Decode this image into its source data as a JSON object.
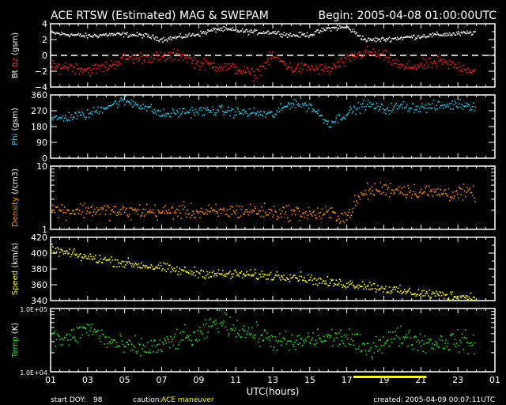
{
  "chart_data": {
    "type": "scatter",
    "title": "ACE RTSW (Estimated) MAG & SWEPAM",
    "begin": "Begin: 2005-04-08 01:00:00UTC",
    "xlabel": "UTC(hours)",
    "xlim": [
      1,
      25
    ],
    "x_ticks": [
      "01",
      "03",
      "05",
      "07",
      "09",
      "11",
      "13",
      "15",
      "17",
      "19",
      "21",
      "23",
      "01"
    ],
    "anchor_hours": [
      1,
      2,
      3,
      4,
      5,
      6,
      7,
      8,
      9,
      10,
      11,
      12,
      13,
      14,
      15,
      16,
      17,
      18,
      19,
      20,
      21,
      22,
      23,
      24
    ],
    "caution_interval_hours": [
      17.35,
      21.3
    ],
    "panels": [
      {
        "id": "mag",
        "ylabel_parts": [
          {
            "text": "Bt ",
            "color": "#ffffff"
          },
          {
            "text": "Bz",
            "color": "#ff2020"
          },
          {
            "text": " (gsm)",
            "color": "#ffffff"
          }
        ],
        "ylim": [
          -4,
          4
        ],
        "scale": "linear",
        "y_ticks": [
          {
            "v": 4,
            "l": "4"
          },
          {
            "v": 2,
            "l": "2"
          },
          {
            "v": 0,
            "l": "0"
          },
          {
            "v": -2,
            "l": "−2"
          },
          {
            "v": -4,
            "l": "−4"
          }
        ],
        "zero_line": true,
        "series": [
          {
            "name": "Bt",
            "color": "#ffffff",
            "noise": 0.15,
            "values": [
              2.9,
              2.7,
              2.5,
              2.7,
              2.7,
              2.6,
              2.1,
              2.4,
              2.8,
              3.4,
              3.2,
              3.0,
              3.0,
              2.6,
              2.7,
              3.5,
              3.6,
              2.0,
              2.1,
              2.3,
              2.5,
              2.7,
              2.8,
              3.0
            ]
          },
          {
            "name": "Bz",
            "color": "#ff2020",
            "noise": 0.35,
            "values": [
              -1.5,
              -1.3,
              -1.8,
              -1.4,
              -0.3,
              -0.2,
              -0.2,
              0.2,
              -1.0,
              -1.3,
              -1.6,
              -2.4,
              0.0,
              -1.6,
              -1.5,
              -1.8,
              -0.5,
              0.5,
              0.0,
              -1.5,
              -1.2,
              -0.8,
              -1.3,
              -2.0
            ]
          }
        ]
      },
      {
        "id": "phi",
        "ylabel_parts": [
          {
            "text": "Phi",
            "color": "#20c8f0"
          },
          {
            "text": " (gsm)",
            "color": "#ffffff"
          }
        ],
        "ylim": [
          0,
          360
        ],
        "scale": "linear",
        "y_ticks": [
          {
            "v": 360,
            "l": "360"
          },
          {
            "v": 270,
            "l": "270"
          },
          {
            "v": 180,
            "l": "180"
          },
          {
            "v": 90,
            "l": "90"
          },
          {
            "v": 0,
            "l": "0"
          }
        ],
        "series": [
          {
            "name": "Phi",
            "color": "#20c8f0",
            "noise": 14,
            "values": [
              220,
              240,
              250,
              300,
              330,
              300,
              250,
              265,
              270,
              275,
              265,
              260,
              250,
              320,
              300,
              200,
              260,
              310,
              280,
              300,
              290,
              300,
              310,
              300
            ]
          }
        ]
      },
      {
        "id": "density",
        "ylabel_parts": [
          {
            "text": "Density",
            "color": "#ff8c00"
          },
          {
            "text": " (/cm3)",
            "color": "#ffffff"
          }
        ],
        "ylim": [
          1,
          10
        ],
        "scale": "log",
        "y_ticks": [
          {
            "v": 10,
            "l": "10"
          },
          {
            "v": 1,
            "l": "1"
          }
        ],
        "series": [
          {
            "name": "Density",
            "color": "#ff8c00",
            "noise": 0.06,
            "values": [
              2.1,
              2.0,
              2.1,
              2.0,
              1.9,
              2.0,
              1.9,
              2.0,
              1.9,
              1.9,
              2.0,
              2.0,
              1.9,
              1.9,
              1.8,
              1.8,
              1.6,
              4.0,
              4.5,
              4.3,
              4.0,
              3.9,
              3.8,
              3.8
            ]
          }
        ]
      },
      {
        "id": "speed",
        "ylabel_parts": [
          {
            "text": "Speed",
            "color": "#ffff00"
          },
          {
            "text": " (km/s)",
            "color": "#ffffff"
          }
        ],
        "ylim": [
          340,
          420
        ],
        "scale": "linear",
        "y_ticks": [
          {
            "v": 420,
            "l": "420"
          },
          {
            "v": 400,
            "l": "400"
          },
          {
            "v": 380,
            "l": "380"
          },
          {
            "v": 360,
            "l": "360"
          },
          {
            "v": 340,
            "l": "340"
          }
        ],
        "series": [
          {
            "name": "Speed",
            "color": "#ffff00",
            "noise": 3,
            "values": [
              405,
              400,
              395,
              392,
              388,
              385,
              382,
              378,
              376,
              374,
              374,
              373,
              372,
              372,
              368,
              363,
              362,
              360,
              356,
              352,
              350,
              348,
              346,
              345
            ]
          }
        ]
      },
      {
        "id": "temp",
        "ylabel_parts": [
          {
            "text": "Temp",
            "color": "#20e020"
          },
          {
            "text": " (K)",
            "color": "#ffffff"
          }
        ],
        "ylim": [
          10000,
          100000
        ],
        "scale": "log",
        "y_ticks": [
          {
            "v": 100000,
            "l": "1.0E+05"
          },
          {
            "v": 10000,
            "l": "1.0E+04"
          }
        ],
        "series": [
          {
            "name": "Temp",
            "color": "#20e020",
            "noise": 0.08,
            "values": [
              35000,
              33000,
              50000,
              32000,
              25000,
              24000,
              26000,
              35000,
              35000,
              65000,
              50000,
              40000,
              32000,
              28000,
              33000,
              35000,
              35000,
              22000,
              32000,
              38000,
              30000,
              30000,
              32000,
              26000
            ]
          }
        ]
      }
    ]
  },
  "footer": {
    "start_doy_label": "start DOY:",
    "start_doy": "98",
    "caution_label": "caution:",
    "caution_text": "ACE maneuver",
    "created": "created: 2005-04-09 00:07:11UTC"
  }
}
